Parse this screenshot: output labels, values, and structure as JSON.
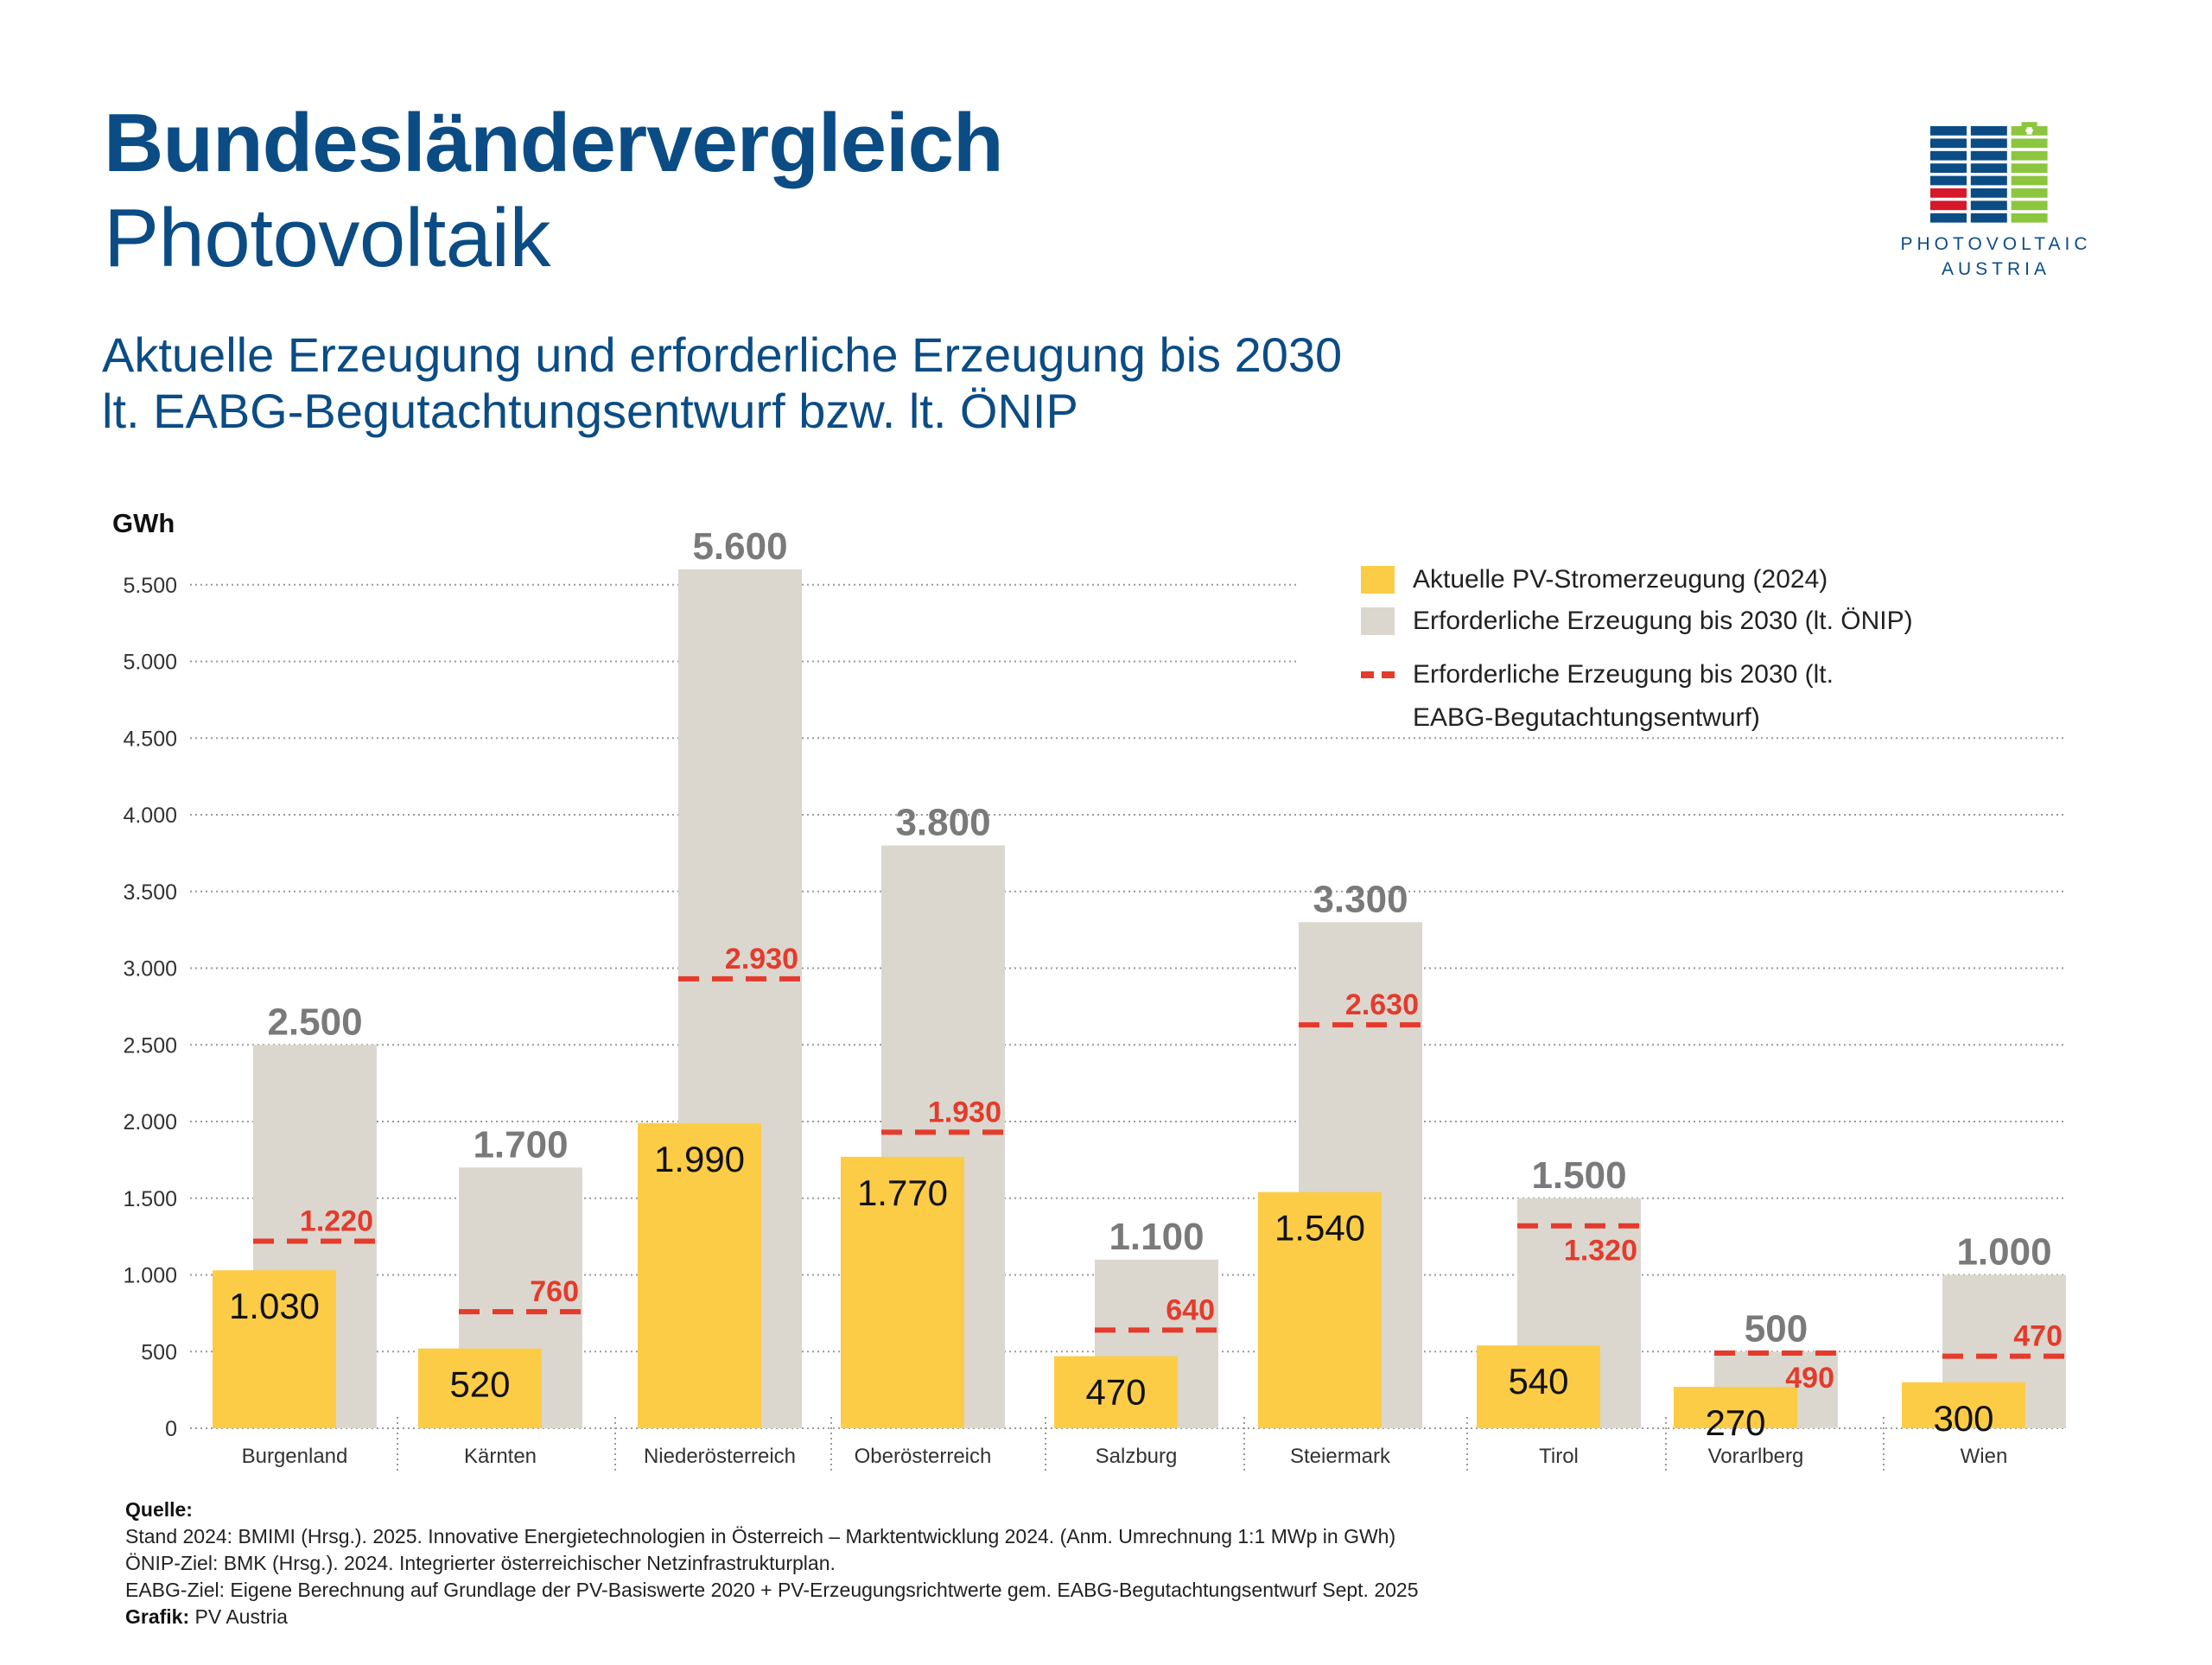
{
  "header": {
    "title": "Bundesländervergleich",
    "title_line2": "Photovoltaik",
    "subtitle_line1": "Aktuelle Erzeugung und erforderliche Erzeugung bis 2030",
    "subtitle_line2": "lt. EABG-Begutachtungsentwurf bzw. lt. ÖNIP"
  },
  "logo": {
    "line1": "PHOTOVOLTAIC",
    "line2": "AUSTRIA",
    "icon": "solar-panel-battery-icon",
    "colors": {
      "blue": "#0b4c85",
      "red": "#d7182a",
      "green": "#8cc63f"
    }
  },
  "legend": {
    "items": [
      {
        "label": "Aktuelle PV-Stromerzeugung (2024)",
        "type": "swatch",
        "color": "#fccc46"
      },
      {
        "label": "Erforderliche Erzeugung bis 2030 (lt. ÖNIP)",
        "type": "swatch",
        "color": "#dbd7cf"
      },
      {
        "label": "Erforderliche Erzeugung bis 2030 (lt.",
        "label2": "EABG-Begutachtungsentwurf)",
        "type": "dashed",
        "color": "#e43b2c"
      }
    ]
  },
  "footer": {
    "quelle_label": "Quelle:",
    "lines": [
      "Stand 2024: BMIMI (Hrsg.). 2025. Innovative Energietechnologien in Österreich – Marktentwicklung 2024. (Anm. Umrechnung 1:1 MWp in GWh)",
      "ÖNIP-Ziel: BMK (Hrsg.). 2024. Integrierter österreichischer Netzinfrastrukturplan.",
      "EABG-Ziel: Eigene Berechnung auf Grundlage der PV-Basiswerte 2020 + PV-Erzeugungsrichtwerte gem. EABG-Begutachtungsentwurf Sept. 2025"
    ],
    "grafik_label": "Grafik:",
    "grafik_value": "PV Austria"
  },
  "chart_data": {
    "type": "bar",
    "title": "Bundesländervergleich Photovoltaik",
    "ylabel": "GWh",
    "xlabel": "",
    "ylim": [
      0,
      5600
    ],
    "yticks": [
      0,
      500,
      1000,
      1500,
      2000,
      2500,
      3000,
      3500,
      4000,
      4500,
      5000,
      5500
    ],
    "ytick_labels": [
      "0",
      "500",
      "1.000",
      "1.500",
      "2.000",
      "2.500",
      "3.000",
      "3.500",
      "4.000",
      "4.500",
      "5.000",
      "5.500"
    ],
    "grid": true,
    "legend_position": "top-right",
    "categories": [
      "Burgenland",
      "Kärnten",
      "Niederösterreich",
      "Oberösterreich",
      "Salzburg",
      "Steiermark",
      "Tirol",
      "Vorarlberg",
      "Wien"
    ],
    "series": [
      {
        "name": "Aktuelle PV-Stromerzeugung (2024)",
        "kind": "bar",
        "color": "#fccc46",
        "values": [
          1030,
          520,
          1990,
          1770,
          470,
          1540,
          540,
          270,
          300
        ],
        "labels": [
          "1.030",
          "520",
          "1.990",
          "1.770",
          "470",
          "1.540",
          "540",
          "270",
          "300"
        ]
      },
      {
        "name": "Erforderliche Erzeugung bis 2030 (lt. ÖNIP)",
        "kind": "bar",
        "color": "#dbd7cf",
        "label_color": "#7a7a7a",
        "values": [
          2500,
          1700,
          5600,
          3800,
          1100,
          3300,
          1500,
          500,
          1000
        ],
        "labels": [
          "2.500",
          "1.700",
          "5.600",
          "3.800",
          "1.100",
          "3.300",
          "1.500",
          "500",
          "1.000"
        ]
      },
      {
        "name": "Erforderliche Erzeugung bis 2030 (lt. EABG-Begutachtungsentwurf)",
        "kind": "dashed-line",
        "color": "#e43b2c",
        "values": [
          1220,
          760,
          2930,
          1930,
          640,
          2630,
          1320,
          490,
          470
        ],
        "labels": [
          "1.220",
          "760",
          "2.930",
          "1.930",
          "640",
          "2.630",
          "1.320",
          "490",
          "470"
        ],
        "label_position": [
          "above",
          "above",
          "above",
          "above",
          "above",
          "above",
          "below",
          "below",
          "above"
        ]
      }
    ]
  }
}
